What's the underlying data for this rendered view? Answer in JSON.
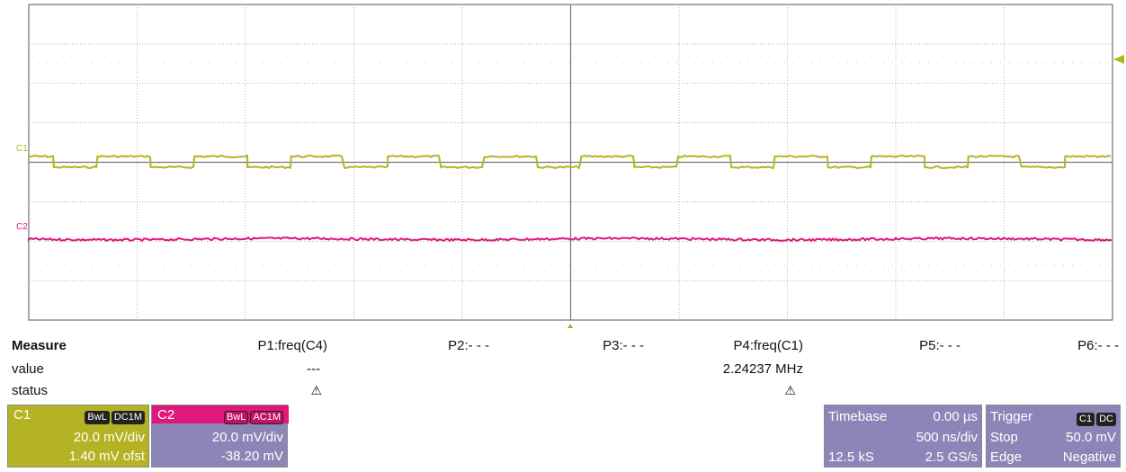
{
  "trace_labels": {
    "c1": "C1",
    "c2": "C2"
  },
  "colors": {
    "c1": "#b5b51f",
    "c2": "#e0187a",
    "grid_border": "#555555",
    "c1_box": "#b3b324",
    "c2_box": "#8c86b8",
    "panel_box": "#8c86b8"
  },
  "measure": {
    "title": "Measure",
    "row_value": "value",
    "row_status": "status",
    "params": [
      {
        "name": "P1:freq(C4)",
        "value": "---",
        "status": "⚠"
      },
      {
        "name": "P2:- - -",
        "value": "",
        "status": ""
      },
      {
        "name": "P3:- - -",
        "value": "",
        "status": ""
      },
      {
        "name": "P4:freq(C1)",
        "value": "2.24237 MHz",
        "status": "⚠"
      },
      {
        "name": "P5:- - -",
        "value": "",
        "status": ""
      },
      {
        "name": "P6:- - -",
        "value": "",
        "status": ""
      }
    ]
  },
  "channel1": {
    "label": "C1",
    "badge1": "BwL",
    "badge2": "DC1M",
    "scale": "20.0 mV/div",
    "offset": "1.40 mV ofst"
  },
  "channel2": {
    "label": "C2",
    "badge1": "BwL",
    "badge2": "AC1M",
    "scale": "20.0 mV/div",
    "offset": "-38.20 mV"
  },
  "timebase": {
    "label": "Timebase",
    "delay": "0.00 µs",
    "scale": "500 ns/div",
    "samples": "12.5 kS",
    "rate": "2.5 GS/s"
  },
  "trigger": {
    "label": "Trigger",
    "badge1": "C1",
    "badge2": "DC",
    "mode": "Stop",
    "level": "50.0 mV",
    "type": "Edge",
    "slope": "Negative"
  }
}
